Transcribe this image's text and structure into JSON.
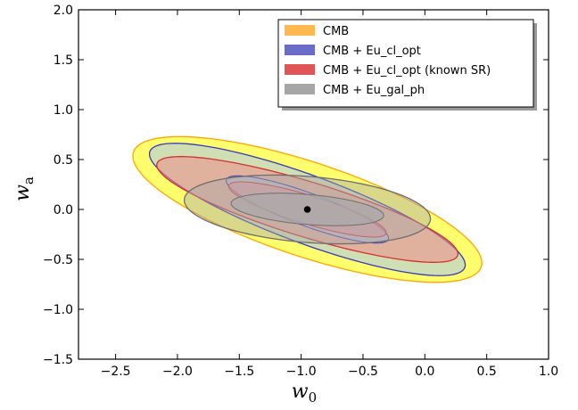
{
  "chart_data": {
    "type": "contour-ellipses",
    "xlabel": "w",
    "xlabel_sub": "0",
    "ylabel": "w",
    "ylabel_sub": "a",
    "xlim": [
      -2.8,
      1.0
    ],
    "ylim": [
      -1.5,
      2.0
    ],
    "xticks": [
      -2.5,
      -2.0,
      -1.5,
      -1.0,
      -0.5,
      0.0,
      0.5,
      1.0
    ],
    "xtick_labels": [
      "−2.5",
      "−2.0",
      "−1.5",
      "−1.0",
      "−0.5",
      "0.0",
      "0.5",
      "1.0"
    ],
    "yticks": [
      -1.5,
      -1.0,
      -0.5,
      0.0,
      0.5,
      1.0,
      1.5,
      2.0
    ],
    "ytick_labels": [
      "−1.5",
      "−1.0",
      "−0.5",
      "0.0",
      "0.5",
      "1.0",
      "1.5",
      "2.0"
    ],
    "fiducial": {
      "x": -0.95,
      "y": 0.0
    },
    "legend_position": "top-right",
    "series": [
      {
        "name": "CMB",
        "color": "#ffb84d",
        "fill": "#ffff55",
        "stroke": "#ffa500",
        "ellipses": [
          {
            "level": "outer",
            "cx": -0.95,
            "cy": 0.0,
            "a": 1.52,
            "b": 0.46,
            "angle_deg": 23
          }
        ]
      },
      {
        "name": "CMB + Eu_cl_opt",
        "color": "#6b6bc8",
        "fill": "#a8c4ec",
        "stroke": "#3a3ab0",
        "ellipses": [
          {
            "level": "outer",
            "cx": -0.95,
            "cy": 0.0,
            "a": 1.4,
            "b": 0.33,
            "angle_deg": 25
          },
          {
            "level": "inner",
            "cx": -0.95,
            "cy": 0.0,
            "a": 0.72,
            "b": 0.16,
            "angle_deg": 25
          }
        ]
      },
      {
        "name": "CMB + Eu_cl_opt (known SR)",
        "color": "#e05555",
        "fill": "#ef8a8a",
        "stroke": "#d33030",
        "ellipses": [
          {
            "level": "outer",
            "cx": -0.95,
            "cy": 0.0,
            "a": 1.3,
            "b": 0.27,
            "angle_deg": 21
          },
          {
            "level": "inner",
            "cx": -0.95,
            "cy": 0.0,
            "a": 0.68,
            "b": 0.14,
            "angle_deg": 21
          }
        ]
      },
      {
        "name": "CMB + Eu_gal_ph",
        "color": "#a6a6a6",
        "fill": "#a9a9a9",
        "stroke": "#6e6e6e",
        "ellipses": [
          {
            "level": "outer",
            "cx": -0.95,
            "cy": 0.0,
            "a": 1.0,
            "b": 0.33,
            "angle_deg": 6
          },
          {
            "level": "inner",
            "cx": -0.95,
            "cy": 0.0,
            "a": 0.62,
            "b": 0.15,
            "angle_deg": 6
          }
        ]
      }
    ]
  }
}
